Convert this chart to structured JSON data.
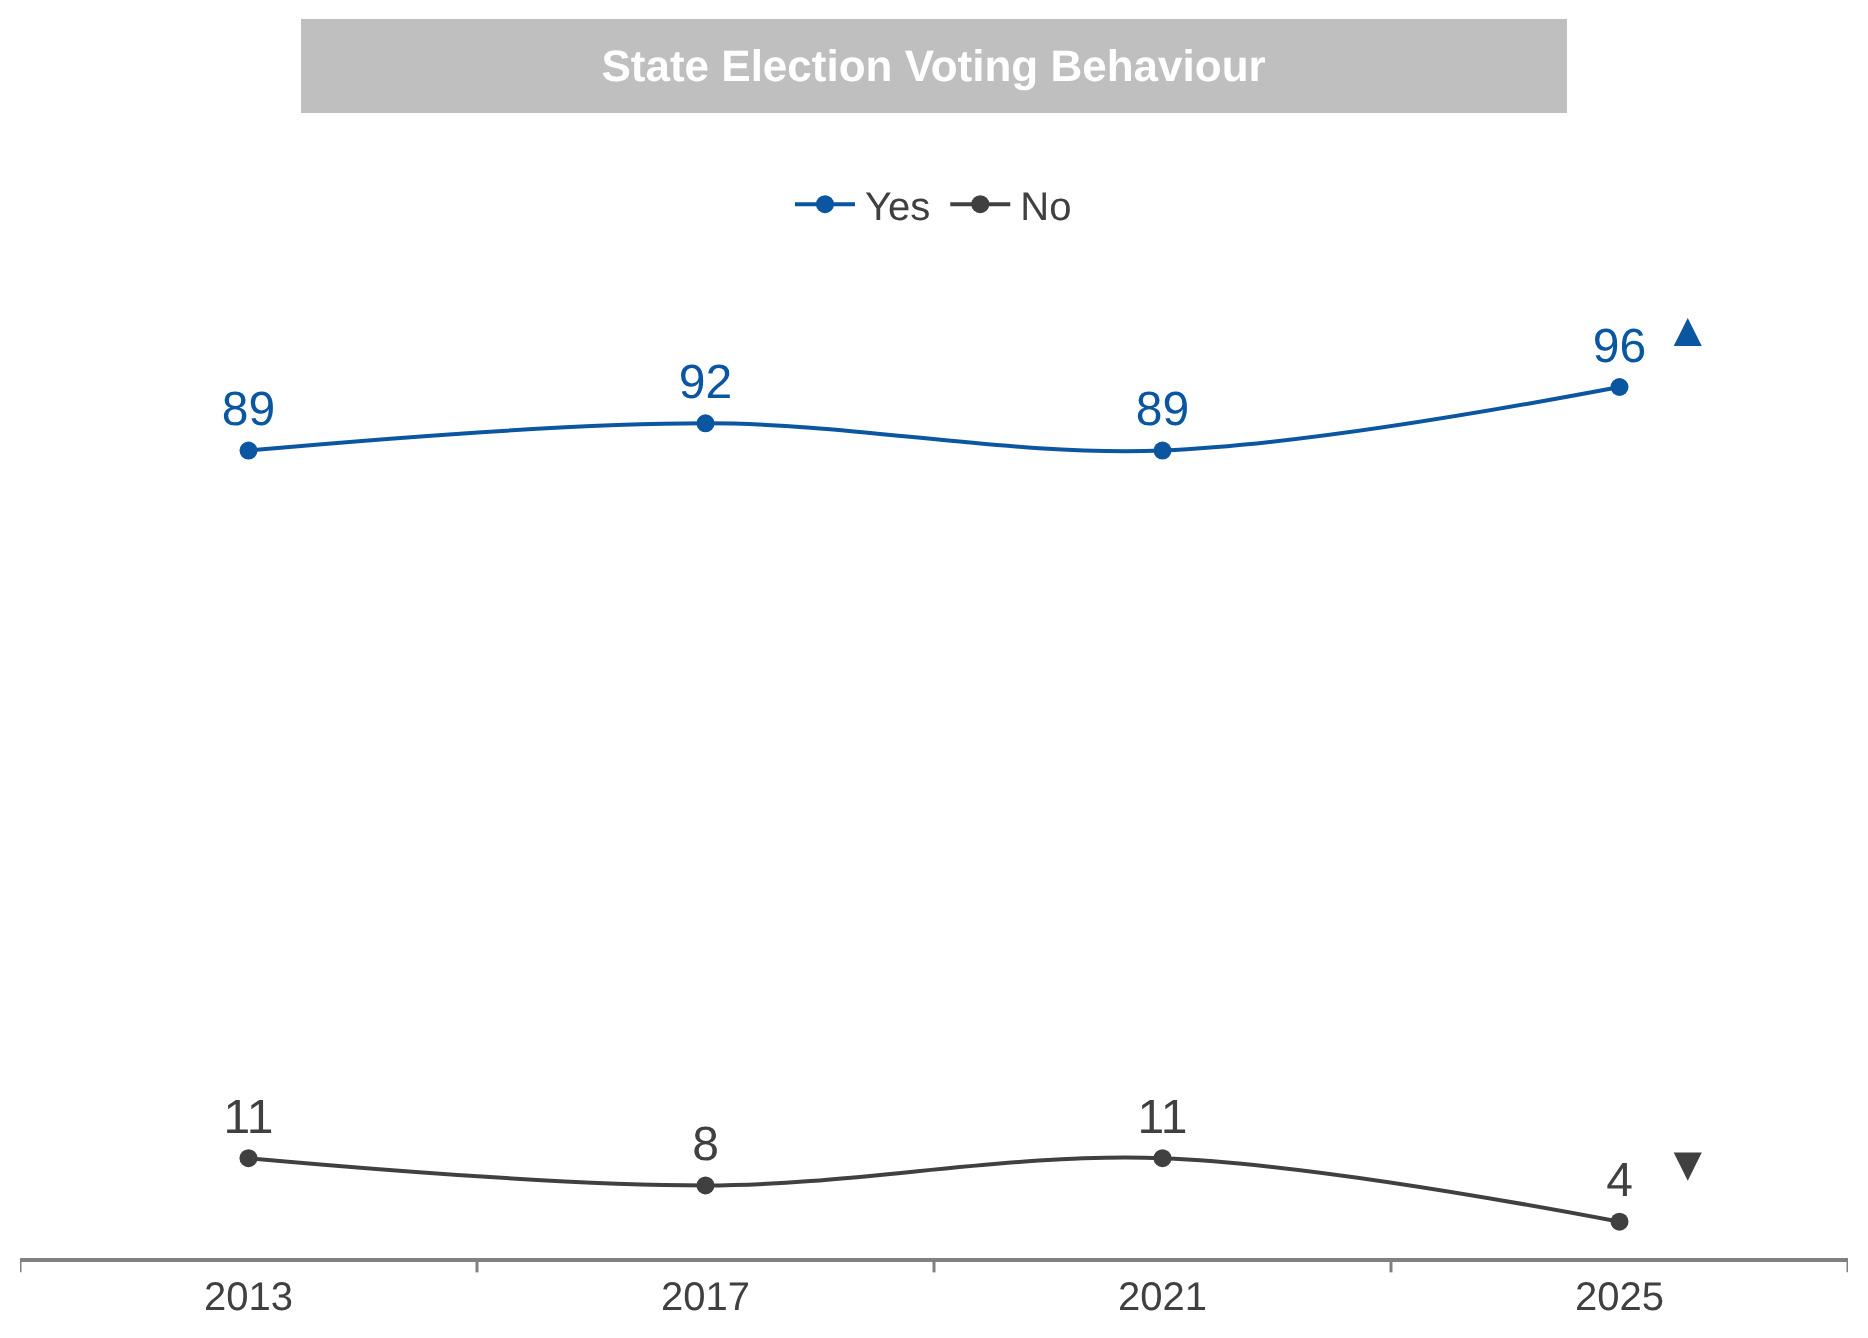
{
  "chart_data": {
    "type": "line",
    "title": "State Election Voting Behaviour",
    "categories": [
      "2013",
      "2017",
      "2021",
      "2025"
    ],
    "series": [
      {
        "name": "Yes",
        "color": "#0a56a0",
        "values": [
          89,
          92,
          89,
          96
        ]
      },
      {
        "name": "No",
        "color": "#404040",
        "values": [
          11,
          8,
          11,
          4
        ]
      }
    ],
    "annotations": [
      {
        "text": "▲",
        "x": "2025",
        "y": 96
      },
      {
        "text": "▼",
        "x": "2025",
        "y": 4
      }
    ],
    "data_labels": true,
    "legend": "top",
    "marker": "circle",
    "line_style": "solid",
    "tick_labels": "x"
  }
}
